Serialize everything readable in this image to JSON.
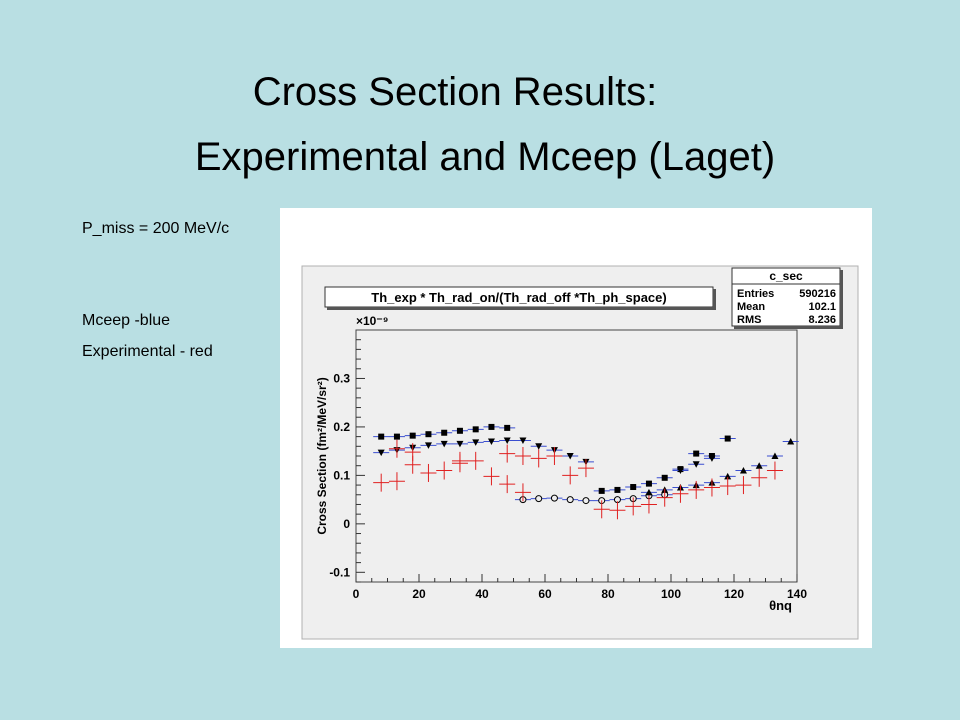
{
  "slide": {
    "title_line1": "Cross Section Results:",
    "title_line2": "Experimental and Mceep (Laget)",
    "pmiss_label": "P_miss = 200 MeV/c",
    "legend_mceep": "Mceep -blue",
    "legend_exp": "Experimental - red"
  },
  "colors": {
    "background": "#b9dfe3",
    "mceep": "#3b4fd0",
    "experimental": "#e02020",
    "frame_bg": "#efefef"
  },
  "chart_data": {
    "type": "scatter",
    "title": "Th_exp * Th_rad_on/(Th_rad_off *Th_ph_space)",
    "xlabel": "θnq",
    "ylabel": "Cross Section (fm²/MeV/sr²)",
    "y_exponent_label": "×10⁻⁹",
    "xlim": [
      0,
      140
    ],
    "ylim": [
      -0.12,
      0.4
    ],
    "xticks": [
      0,
      20,
      40,
      60,
      80,
      100,
      120,
      140
    ],
    "yticks": [
      -0.1,
      0,
      0.1,
      0.2,
      0.3
    ],
    "ytick_labels": [
      "-0.1",
      "0",
      "0.1",
      "0.2",
      "0.3"
    ],
    "stats_box": {
      "name": "c_sec",
      "rows": [
        {
          "label": "Entries",
          "value": "590216"
        },
        {
          "label": "Mean",
          "value": "102.1"
        },
        {
          "label": "RMS",
          "value": "8.236"
        }
      ]
    },
    "series": [
      {
        "marker": "square",
        "color": "#3b4fd0",
        "points": [
          [
            8,
            0.18
          ],
          [
            13,
            0.18
          ],
          [
            18,
            0.182
          ],
          [
            23,
            0.185
          ],
          [
            28,
            0.188
          ],
          [
            33,
            0.192
          ],
          [
            38,
            0.195
          ],
          [
            43,
            0.2
          ],
          [
            48,
            0.198
          ],
          [
            78,
            0.068
          ],
          [
            83,
            0.07
          ],
          [
            88,
            0.076
          ],
          [
            93,
            0.083
          ],
          [
            98,
            0.095
          ],
          [
            103,
            0.113
          ],
          [
            108,
            0.145
          ],
          [
            113,
            0.14
          ],
          [
            118,
            0.176
          ]
        ]
      },
      {
        "marker": "triangle-down",
        "color": "#3b4fd0",
        "points": [
          [
            8,
            0.147
          ],
          [
            13,
            0.152
          ],
          [
            18,
            0.157
          ],
          [
            23,
            0.162
          ],
          [
            28,
            0.165
          ],
          [
            33,
            0.165
          ],
          [
            38,
            0.168
          ],
          [
            43,
            0.17
          ],
          [
            48,
            0.172
          ],
          [
            53,
            0.172
          ],
          [
            58,
            0.16
          ],
          [
            63,
            0.152
          ],
          [
            68,
            0.14
          ],
          [
            73,
            0.128
          ],
          [
            103,
            0.11
          ],
          [
            108,
            0.123
          ],
          [
            113,
            0.135
          ]
        ]
      },
      {
        "marker": "circle-open",
        "color": "#3b4fd0",
        "points": [
          [
            53,
            0.05
          ],
          [
            58,
            0.052
          ],
          [
            63,
            0.053
          ],
          [
            68,
            0.05
          ],
          [
            73,
            0.048
          ],
          [
            78,
            0.048
          ],
          [
            83,
            0.05
          ],
          [
            88,
            0.052
          ],
          [
            93,
            0.058
          ],
          [
            98,
            0.06
          ]
        ]
      },
      {
        "marker": "triangle-up",
        "color": "#3b4fd0",
        "points": [
          [
            93,
            0.065
          ],
          [
            98,
            0.07
          ],
          [
            103,
            0.075
          ],
          [
            108,
            0.08
          ],
          [
            113,
            0.085
          ],
          [
            118,
            0.098
          ],
          [
            123,
            0.11
          ],
          [
            128,
            0.12
          ],
          [
            133,
            0.14
          ],
          [
            138,
            0.17
          ]
        ]
      },
      {
        "marker": "cross",
        "color": "#e02020",
        "points": [
          [
            8,
            0.085
          ],
          [
            13,
            0.088
          ],
          [
            13,
            0.155
          ],
          [
            18,
            0.122
          ],
          [
            18,
            0.148
          ],
          [
            23,
            0.105
          ],
          [
            28,
            0.11
          ],
          [
            33,
            0.125
          ],
          [
            33,
            0.13
          ],
          [
            38,
            0.13
          ],
          [
            43,
            0.098
          ],
          [
            48,
            0.082
          ],
          [
            48,
            0.145
          ],
          [
            53,
            0.065
          ],
          [
            53,
            0.14
          ],
          [
            58,
            0.135
          ],
          [
            63,
            0.14
          ],
          [
            68,
            0.1
          ],
          [
            73,
            0.115
          ],
          [
            78,
            0.03
          ],
          [
            83,
            0.028
          ],
          [
            88,
            0.036
          ],
          [
            93,
            0.04
          ],
          [
            98,
            0.054
          ],
          [
            103,
            0.062
          ],
          [
            108,
            0.07
          ],
          [
            113,
            0.075
          ],
          [
            118,
            0.078
          ],
          [
            123,
            0.08
          ],
          [
            128,
            0.095
          ],
          [
            133,
            0.11
          ]
        ]
      }
    ]
  }
}
